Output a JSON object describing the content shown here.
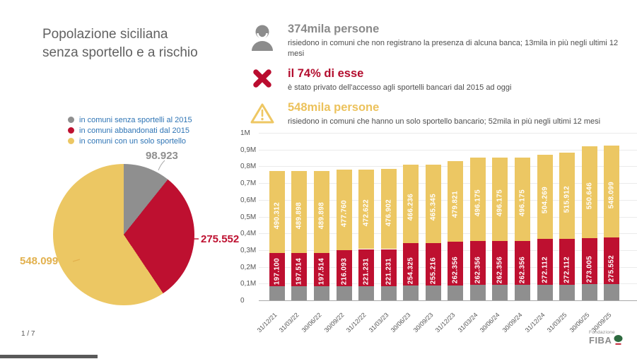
{
  "title": {
    "line1": "Popolazione siciliana",
    "line2": "senza sportello e a rischio"
  },
  "stats": [
    {
      "icon": "person-icon",
      "heading": "374mila persone",
      "heading_color": "#8a8a8a",
      "body": "risiedono in comuni che non registrano la presenza di alcuna banca; 13mila in più negli ultimi 12 mesi"
    },
    {
      "icon": "x-icon",
      "heading": "il 74% di esse",
      "heading_color": "#b30d2e",
      "body": "è stato privato dell'accesso agli sportelli bancari dal 2015 ad oggi"
    },
    {
      "icon": "warning-icon",
      "heading": "548mila persone",
      "heading_color": "#ecc25c",
      "body": "risiedono in comuni che hanno un solo sportello bancario; 52mila in più negli ultimi 12 mesi"
    }
  ],
  "colors": {
    "gray": "#8f8f8f",
    "red": "#be1030",
    "yellow": "#ecc763",
    "legend_blue": "#2e74b5"
  },
  "chart_data": [
    {
      "type": "pie",
      "start": "12-oclock clockwise",
      "legend": [
        {
          "label": "in comuni senza sportelli al 2015",
          "color": "#8f8f8f"
        },
        {
          "label": "in comuni abbandonati dal 2015",
          "color": "#be1030"
        },
        {
          "label": "in comuni con un solo sportello",
          "color": "#ecc763"
        }
      ],
      "slices": [
        {
          "label": "98.923",
          "value": 98923,
          "color": "#8f8f8f",
          "label_color": "#8f8f8f"
        },
        {
          "label": "275.552",
          "value": 275552,
          "color": "#be1030",
          "label_color": "#be1030"
        },
        {
          "label": "548.099",
          "value": 548099,
          "color": "#ecc763",
          "label_color": "#e2b14e"
        }
      ]
    },
    {
      "type": "bar",
      "stacked": true,
      "grid": true,
      "ylim": [
        0,
        1000000
      ],
      "ylabels_top_to_bottom": [
        "1M",
        "0,9M",
        "0,8M",
        "0,7M",
        "0,6M",
        "0,5M",
        "0,4M",
        "0,3M",
        "0,2M",
        "0,1M",
        "0"
      ],
      "categories": [
        "31/12/21",
        "31/03/22",
        "30/06/22",
        "30/09/22",
        "31/12/22",
        "31/03/23",
        "30/06/23",
        "30/09/23",
        "31/12/23",
        "31/03/24",
        "30/06/24",
        "30/09/24",
        "31/12/24",
        "31/03/25",
        "30/06/25",
        "30/09/25"
      ],
      "series": [
        {
          "name": "in comuni senza sportelli al 2015",
          "color": "#8f8f8f",
          "labels_shown": false,
          "values_estimated": [
            85000,
            85000,
            85000,
            85000,
            85000,
            85000,
            88000,
            88000,
            90000,
            92000,
            92000,
            92000,
            94000,
            95000,
            97000,
            98923
          ]
        },
        {
          "name": "in comuni abbandonati dal 2015",
          "color": "#be1030",
          "labels_shown": true,
          "values": [
            197100,
            197514,
            197514,
            216093,
            221231,
            221231,
            254325,
            255216,
            262356,
            262356,
            262356,
            262356,
            272112,
            272112,
            273005,
            275552
          ]
        },
        {
          "name": "in comuni con un solo sportello",
          "color": "#ecc763",
          "labels_shown": true,
          "values": [
            490312,
            489898,
            489898,
            477760,
            472622,
            476902,
            466236,
            465345,
            479821,
            496175,
            496175,
            496175,
            504269,
            515912,
            550646,
            548099
          ]
        }
      ]
    }
  ],
  "footer": {
    "page_indicator": "1 / 7",
    "logo_small": "Fondazione",
    "logo_main": "FIBA"
  }
}
